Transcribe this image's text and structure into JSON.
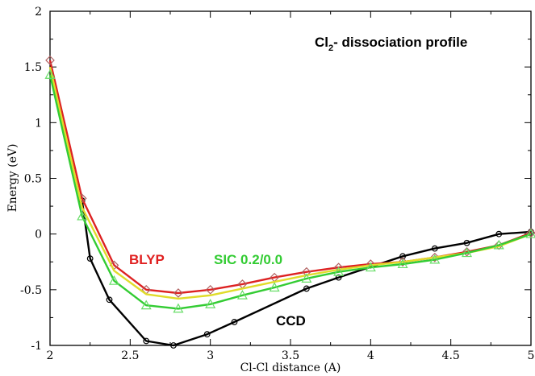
{
  "chart_data": {
    "type": "line",
    "title_main": "Cl",
    "title_sub": "2",
    "title_rest": "- dissociation profile",
    "xlabel": "Cl-Cl distance (A)",
    "ylabel": "Energy (eV)",
    "xlim": [
      2,
      5
    ],
    "ylim": [
      -1,
      2
    ],
    "x_ticks": [
      2,
      2.5,
      3,
      3.5,
      4,
      4.5,
      5
    ],
    "y_ticks": [
      -1,
      -0.5,
      0,
      0.5,
      1,
      1.5,
      2
    ],
    "x_tick_labels": [
      "2",
      "2.5",
      "3",
      "3.5",
      "4",
      "4.5",
      "5"
    ],
    "y_tick_labels": [
      "-1",
      "-0.5",
      "0",
      "0.5",
      "1",
      "1.5",
      "2"
    ],
    "grid": false,
    "annotations": [
      {
        "text": "BLYP",
        "color": "#e02020"
      },
      {
        "text": "SIC 0.2/0.0",
        "color": "#33cc33"
      },
      {
        "text": "CCD",
        "color": "#000000"
      }
    ],
    "series": [
      {
        "name": "CCD",
        "color": "#000000",
        "marker": "circle",
        "x": [
          2.2,
          2.25,
          2.37,
          2.6,
          2.77,
          2.98,
          3.15,
          3.6,
          3.8,
          4.2,
          4.4,
          4.6,
          4.8,
          5.0
        ],
        "y": [
          0.3,
          -0.22,
          -0.59,
          -0.96,
          -1.0,
          -0.9,
          -0.79,
          -0.49,
          -0.39,
          -0.2,
          -0.13,
          -0.08,
          0.0,
          0.02
        ]
      },
      {
        "name": "BLYP",
        "color": "#dd2222",
        "marker": "diamond",
        "x": [
          2.0,
          2.2,
          2.4,
          2.6,
          2.8,
          3.0,
          3.2,
          3.4,
          3.6,
          3.8,
          4.0,
          4.2,
          4.4,
          4.6,
          4.8,
          5.0
        ],
        "y": [
          1.56,
          0.32,
          -0.28,
          -0.5,
          -0.53,
          -0.5,
          -0.45,
          -0.39,
          -0.34,
          -0.3,
          -0.27,
          -0.25,
          -0.21,
          -0.16,
          -0.1,
          0.01
        ]
      },
      {
        "name": "",
        "color": "#e0dc2a",
        "marker": "none",
        "x": [
          2.0,
          2.2,
          2.4,
          2.6,
          2.8,
          3.0,
          3.2,
          3.4,
          3.6,
          3.8,
          4.0,
          4.2,
          4.4,
          4.6,
          4.8,
          5.0
        ],
        "y": [
          1.5,
          0.24,
          -0.33,
          -0.54,
          -0.58,
          -0.55,
          -0.49,
          -0.43,
          -0.37,
          -0.32,
          -0.28,
          -0.25,
          -0.21,
          -0.17,
          -0.11,
          0.0
        ]
      },
      {
        "name": "SIC 0.2/0.0",
        "color": "#33cc33",
        "marker": "triangle",
        "x": [
          2.0,
          2.2,
          2.4,
          2.6,
          2.8,
          3.0,
          3.2,
          3.4,
          3.6,
          3.8,
          4.0,
          4.2,
          4.4,
          4.6,
          4.8,
          5.0
        ],
        "y": [
          1.43,
          0.16,
          -0.42,
          -0.64,
          -0.67,
          -0.63,
          -0.55,
          -0.48,
          -0.4,
          -0.34,
          -0.3,
          -0.27,
          -0.23,
          -0.17,
          -0.1,
          0.0
        ]
      }
    ]
  }
}
